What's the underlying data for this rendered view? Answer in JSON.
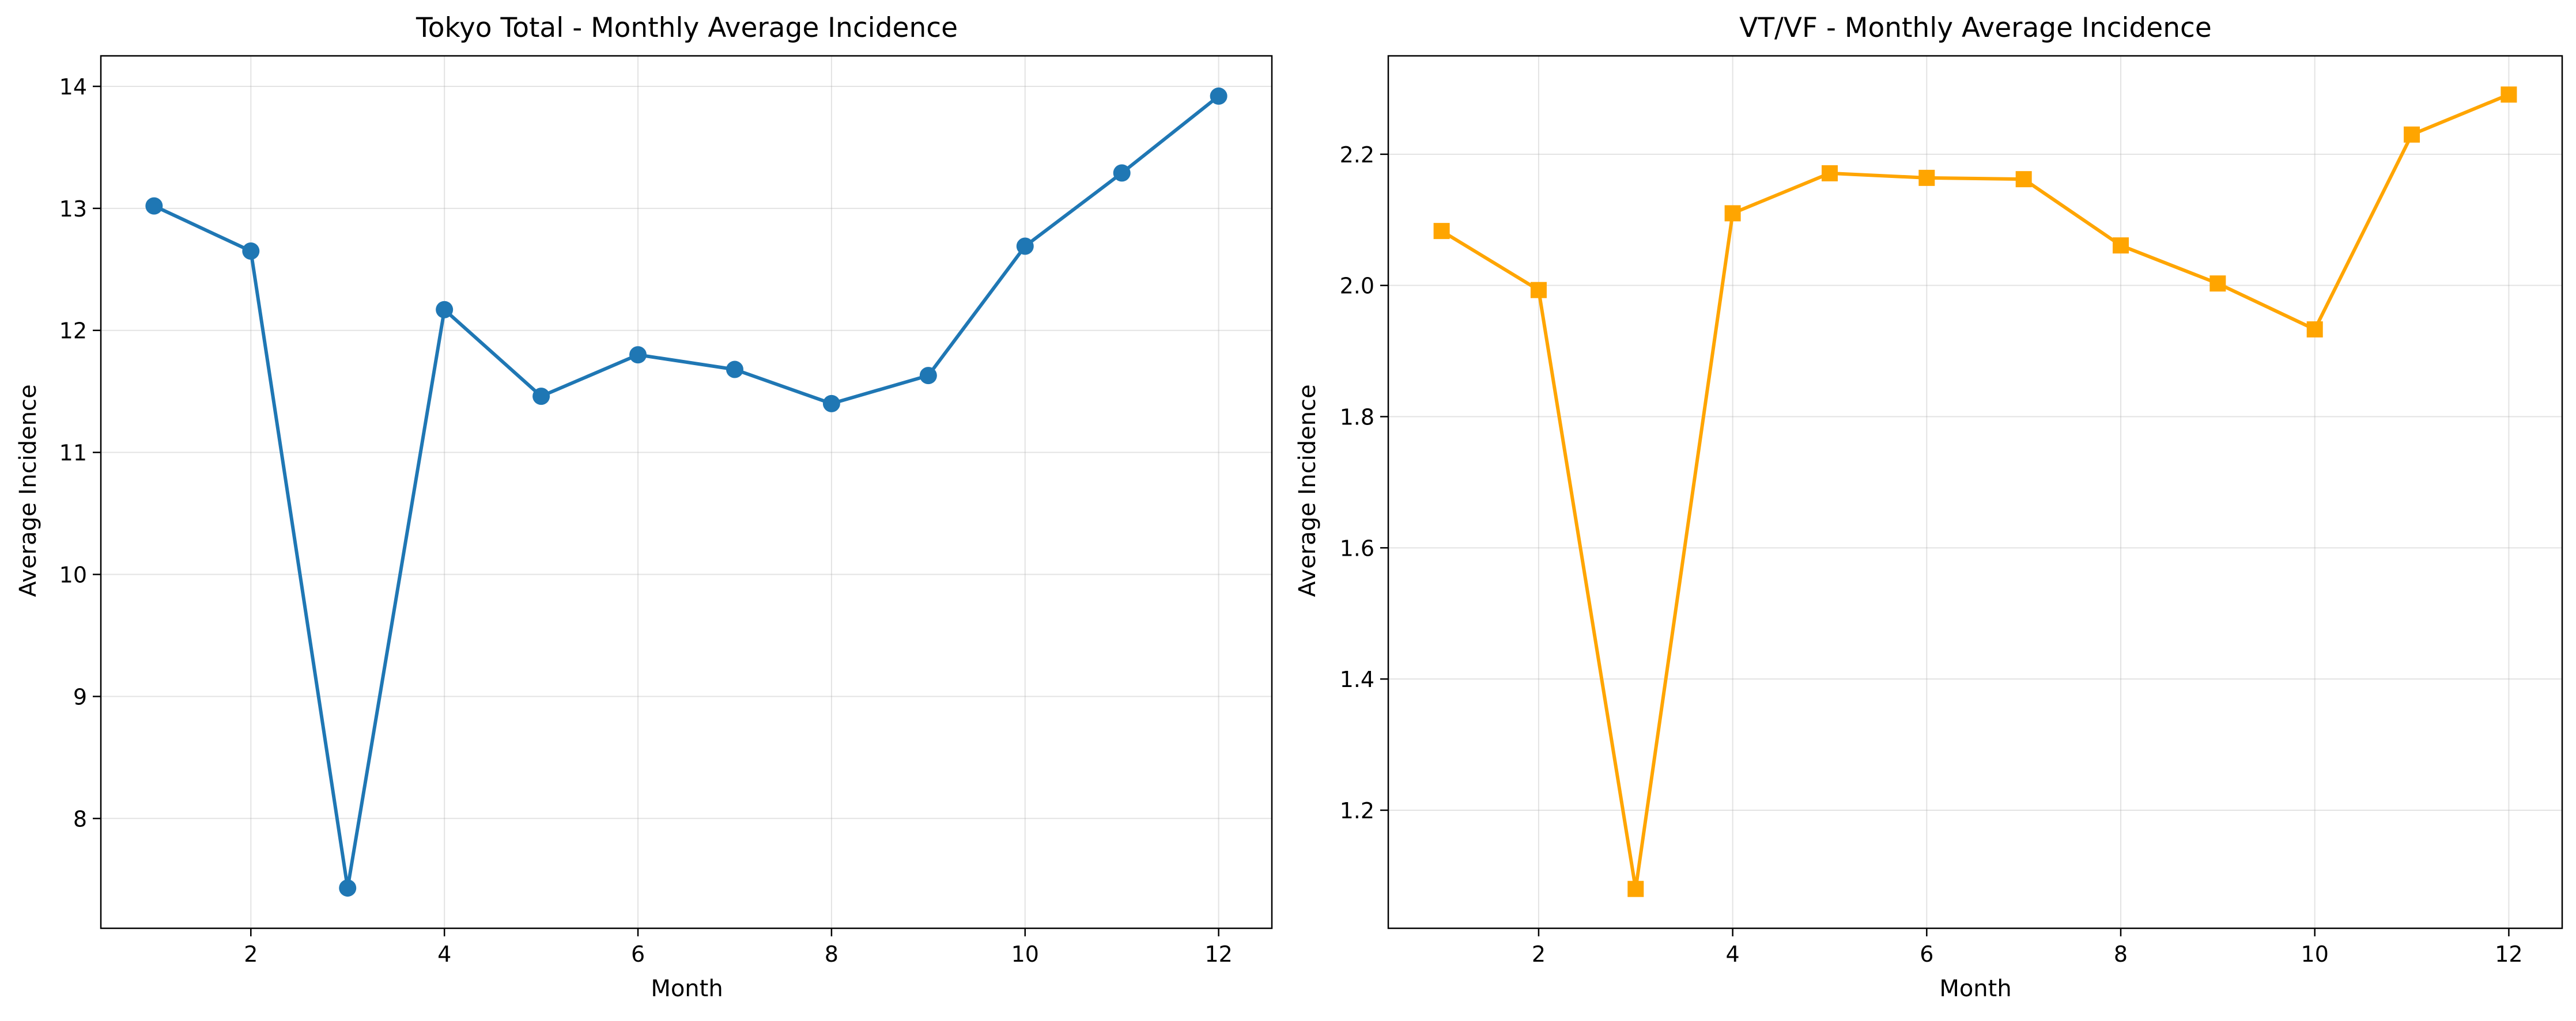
{
  "chart_data": [
    {
      "type": "line",
      "title": "Tokyo Total - Monthly Average Incidence",
      "xlabel": "Month",
      "ylabel": "Average Incidence",
      "grid": true,
      "x": [
        1,
        2,
        3,
        4,
        5,
        6,
        7,
        8,
        9,
        10,
        11,
        12
      ],
      "xlim": [
        0.45,
        12.55
      ],
      "ylim": [
        7.1,
        14.25
      ],
      "xticks": [
        2,
        4,
        6,
        8,
        10,
        12
      ],
      "yticks": [
        8,
        9,
        10,
        11,
        12,
        13,
        14
      ],
      "tick_decimals": 0,
      "series": [
        {
          "values": [
            13.02,
            12.65,
            7.43,
            12.17,
            11.46,
            11.8,
            11.68,
            11.4,
            11.63,
            12.69,
            13.29,
            13.92
          ],
          "color": "#1f77b4",
          "marker": "circle"
        }
      ]
    },
    {
      "type": "line",
      "title": "VT/VF - Monthly Average Incidence",
      "xlabel": "Month",
      "ylabel": "Average Incidence",
      "grid": true,
      "x": [
        1,
        2,
        3,
        4,
        5,
        6,
        7,
        8,
        9,
        10,
        11,
        12
      ],
      "xlim": [
        0.45,
        12.55
      ],
      "ylim": [
        1.02,
        2.35
      ],
      "xticks": [
        2,
        4,
        6,
        8,
        10,
        12
      ],
      "yticks": [
        1.2,
        1.4,
        1.6,
        1.8,
        2.0,
        2.2
      ],
      "tick_decimals": 1,
      "series": [
        {
          "values": [
            2.083,
            1.993,
            1.08,
            2.11,
            2.171,
            2.164,
            2.162,
            2.061,
            2.003,
            1.933,
            2.23,
            2.291
          ],
          "color": "#ffa500",
          "marker": "square"
        }
      ]
    }
  ]
}
